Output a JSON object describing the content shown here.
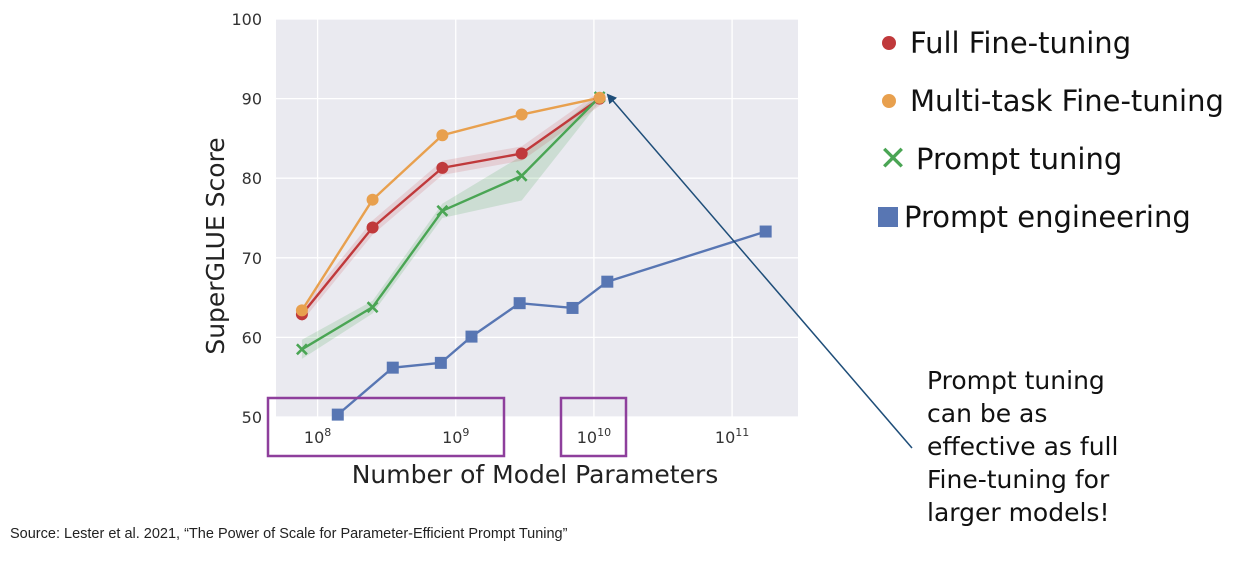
{
  "chart_data": {
    "type": "line",
    "title": "",
    "xlabel": "Number of Model Parameters",
    "ylabel": "SuperGLUE Score",
    "x_scale": "log",
    "xlim": [
      50000000,
      300000000000
    ],
    "ylim": [
      50,
      100
    ],
    "y_ticks": [
      "50",
      "60",
      "70",
      "80",
      "90",
      "100"
    ],
    "x_ticks": [
      {
        "value": 100000000,
        "base": "10",
        "exp": "8"
      },
      {
        "value": 1000000000,
        "base": "10",
        "exp": "9"
      },
      {
        "value": 10000000000,
        "base": "10",
        "exp": "10"
      },
      {
        "value": 100000000000,
        "base": "10",
        "exp": "11"
      }
    ],
    "grid": true,
    "legend_position": "right",
    "series": [
      {
        "name": "Full Fine-tuning",
        "marker": "circle",
        "color": "#c0393b",
        "x": [
          77000000,
          250000000,
          800000000,
          3000000000,
          11000000000
        ],
        "y": [
          62.9,
          73.8,
          81.3,
          83.1,
          90.0
        ]
      },
      {
        "name": "Multi-task Fine-tuning",
        "marker": "circle",
        "color": "#e8a04e",
        "x": [
          77000000,
          250000000,
          800000000,
          3000000000,
          11000000000
        ],
        "y": [
          63.4,
          77.3,
          85.4,
          88.0,
          90.1
        ]
      },
      {
        "name": "Prompt tuning",
        "marker": "cross",
        "color": "#4aa554",
        "x": [
          77000000,
          250000000,
          800000000,
          3000000000,
          11000000000
        ],
        "y": [
          58.5,
          63.8,
          75.9,
          80.3,
          90.2
        ],
        "band_low": [
          57.3,
          63.0,
          75.0,
          77.2,
          89.6
        ],
        "band_high": [
          59.7,
          64.6,
          76.8,
          82.8,
          90.6
        ]
      },
      {
        "name": "Prompt engineering",
        "marker": "square",
        "color": "#5876b3",
        "x": [
          140000000,
          350000000,
          780000000,
          1300000000,
          2900000000,
          7000000000,
          12500000000,
          175000000000
        ],
        "y": [
          50.3,
          56.2,
          56.8,
          60.1,
          64.3,
          63.7,
          67.0,
          73.3
        ]
      }
    ]
  },
  "annotation": {
    "lines": [
      "Prompt tuning",
      "can be as",
      "effective as full",
      "Fine-tuning for",
      "larger models!"
    ]
  },
  "source": "Source:  Lester et al. 2021, “The Power of Scale for Parameter-Efficient Prompt Tuning”",
  "colors": {
    "plot_background": "#eaeaf0",
    "highlight_box": "#8e3f9c",
    "arrow": "#1f4e79"
  }
}
